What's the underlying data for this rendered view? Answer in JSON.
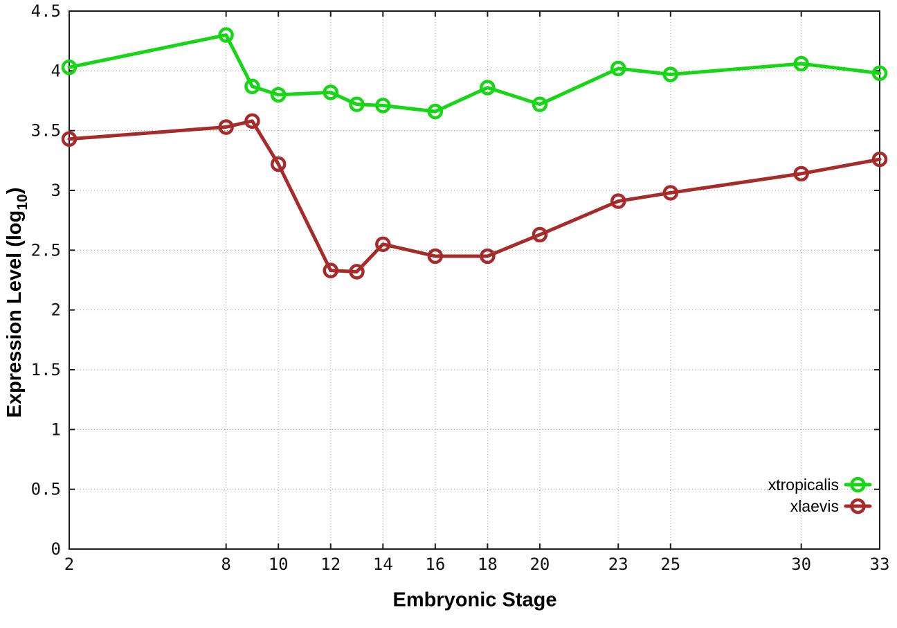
{
  "figure": {
    "background": "#ffffff",
    "x_title": "Embryonic Stage",
    "y_title_main": "Expression Level (log",
    "y_title_sub": "10",
    "y_title_close": ")"
  },
  "chart_data": {
    "type": "line",
    "title": "",
    "xlabel": "Embryonic Stage",
    "ylabel": "Expression Level (log10)",
    "x": [
      2,
      8,
      9,
      10,
      12,
      13,
      14,
      16,
      18,
      20,
      23,
      25,
      30,
      33
    ],
    "series": [
      {
        "name": "xtropicalis",
        "color": "#16d616",
        "values": [
          4.03,
          4.3,
          3.87,
          3.8,
          3.82,
          3.72,
          3.71,
          3.66,
          3.86,
          3.72,
          4.02,
          3.97,
          4.06,
          3.98
        ]
      },
      {
        "name": "xlaevis",
        "color": "#a62c2c",
        "values": [
          3.43,
          3.53,
          3.58,
          3.22,
          2.33,
          2.32,
          2.55,
          2.45,
          2.45,
          2.63,
          2.91,
          2.98,
          3.14,
          3.26
        ]
      }
    ],
    "x_ticks": [
      2,
      8,
      10,
      12,
      14,
      16,
      18,
      20,
      23,
      25,
      30,
      33
    ],
    "y_ticks": [
      0,
      0.5,
      1,
      1.5,
      2,
      2.5,
      3,
      3.5,
      4,
      4.5
    ],
    "xlim": [
      2,
      33
    ],
    "ylim": [
      0,
      4.5
    ],
    "grid": true,
    "marker": "open-circle",
    "legend_position": "bottom-right"
  },
  "colors": {
    "grid": "#9c9c9c",
    "axis": "#1c1c1c",
    "tick_text": "#111111"
  }
}
